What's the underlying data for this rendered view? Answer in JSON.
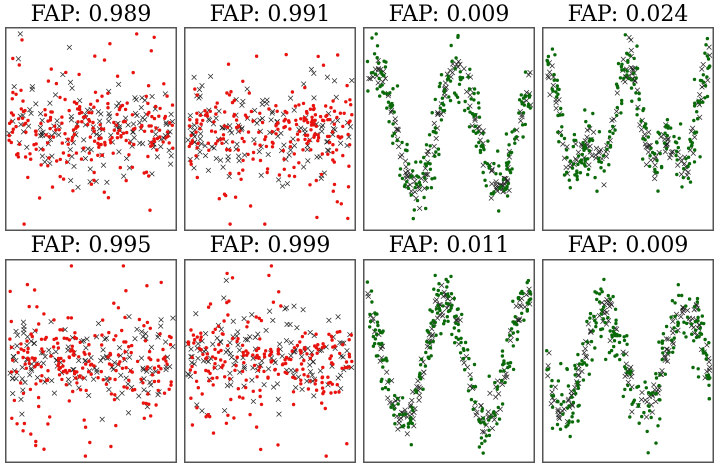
{
  "colors": {
    "normal": "#e8130e",
    "periodic": "#0a6a0a",
    "model": "#222222",
    "frame": "#555555"
  },
  "chart_data": [
    {
      "type": "scatter",
      "title_prefix": "FAP: ",
      "fap": "0.989",
      "class": "non-periodic",
      "marker_color": "#e8130e",
      "x_range": [
        0,
        1
      ],
      "y_range": [
        -3.2,
        3.2
      ],
      "shape": "noise",
      "amplitude": 0.75,
      "cycles": 0,
      "spread": 1.6,
      "seed": 11
    },
    {
      "type": "scatter",
      "title_prefix": "FAP: ",
      "fap": "0.991",
      "class": "non-periodic",
      "marker_color": "#e8130e",
      "x_range": [
        0,
        1
      ],
      "y_range": [
        -3.2,
        3.2
      ],
      "shape": "noise",
      "amplitude": 0.7,
      "cycles": 0,
      "spread": 1.5,
      "seed": 23
    },
    {
      "type": "scatter",
      "title_prefix": "FAP: ",
      "fap": "0.009",
      "class": "periodic",
      "marker_color": "#0a6a0a",
      "x_range": [
        0,
        1
      ],
      "y_range": [
        -3.2,
        3.2
      ],
      "shape": "sine",
      "amplitude": 1.9,
      "cycles": 2,
      "phase": 0.15,
      "spread": 0.55,
      "seed": 37
    },
    {
      "type": "scatter",
      "title_prefix": "FAP: ",
      "fap": "0.024",
      "class": "periodic",
      "marker_color": "#0a6a0a",
      "x_range": [
        0,
        1
      ],
      "y_range": [
        -3.2,
        3.2
      ],
      "shape": "double",
      "amplitude": 1.8,
      "cycles": 2,
      "phase": 0.0,
      "spread": 0.6,
      "seed": 41
    },
    {
      "type": "scatter",
      "title_prefix": "FAP: ",
      "fap": "0.995",
      "class": "non-periodic",
      "marker_color": "#e8130e",
      "x_range": [
        0,
        1
      ],
      "y_range": [
        -3.2,
        3.2
      ],
      "shape": "noise",
      "amplitude": 0.75,
      "cycles": 0,
      "spread": 1.7,
      "seed": 53
    },
    {
      "type": "scatter",
      "title_prefix": "FAP: ",
      "fap": "0.999",
      "class": "non-periodic",
      "marker_color": "#e8130e",
      "x_range": [
        0,
        1
      ],
      "y_range": [
        -3.2,
        3.2
      ],
      "shape": "noise",
      "amplitude": 0.7,
      "cycles": 0,
      "spread": 1.6,
      "seed": 67
    },
    {
      "type": "scatter",
      "title_prefix": "FAP: ",
      "fap": "0.011",
      "class": "periodic",
      "marker_color": "#0a6a0a",
      "x_range": [
        0,
        1
      ],
      "y_range": [
        -3.2,
        3.2
      ],
      "shape": "sine",
      "amplitude": 2.0,
      "cycles": 2,
      "phase": 0.3,
      "spread": 0.5,
      "seed": 79
    },
    {
      "type": "scatter",
      "title_prefix": "FAP: ",
      "fap": "0.009",
      "class": "periodic",
      "marker_color": "#0a6a0a",
      "x_range": [
        0,
        1
      ],
      "y_range": [
        -3.2,
        3.2
      ],
      "shape": "sine",
      "amplitude": 1.6,
      "cycles": 2,
      "phase": 0.55,
      "spread": 0.65,
      "seed": 97
    }
  ]
}
